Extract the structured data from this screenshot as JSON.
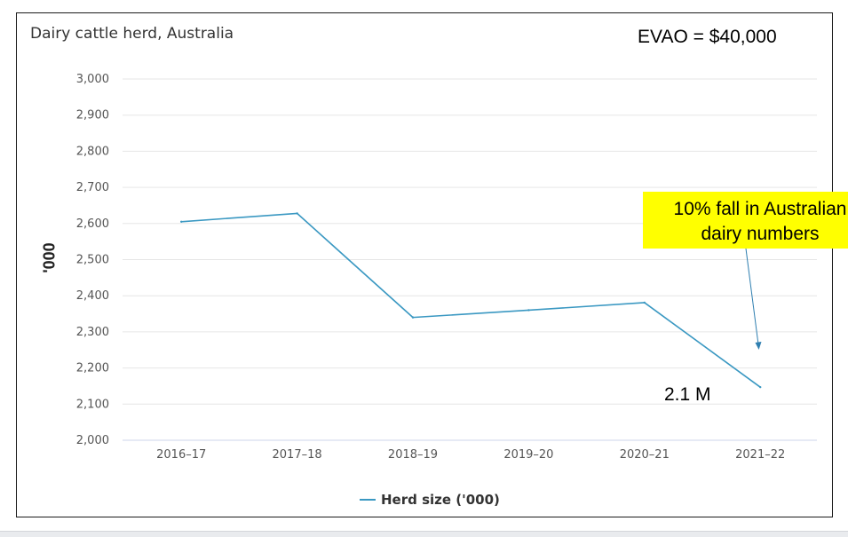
{
  "chart_data": {
    "type": "line",
    "title": "Dairy cattle herd, Australia",
    "ylabel": "'000",
    "xlabel": "",
    "categories": [
      "2016-17",
      "2017-18",
      "2018-19",
      "2019-20",
      "2020-21",
      "2021-22"
    ],
    "series": [
      {
        "name": "Herd size ('000)",
        "values": [
          2605,
          2628,
          2340,
          2360,
          2381,
          2147
        ],
        "color": "#3a98c2"
      }
    ],
    "ylim": [
      2000,
      3000
    ],
    "yticks": [
      "2,000",
      "2,100",
      "2,200",
      "2,300",
      "2,400",
      "2,500",
      "2,600",
      "2,700",
      "2,800",
      "2,900",
      "3,000"
    ],
    "grid": true,
    "legend": "bottom",
    "annotations": {
      "evao": "EVAO = $40,000",
      "callout": "10% fall in Australian\ndairy numbers",
      "value_label": "2.1 M"
    }
  },
  "colors": {
    "line": "#3a98c2",
    "grid": "#e6e6e6",
    "axis": "#ccd6eb",
    "callout_bg": "#ffff00",
    "arrow": "#2f7fb0"
  }
}
